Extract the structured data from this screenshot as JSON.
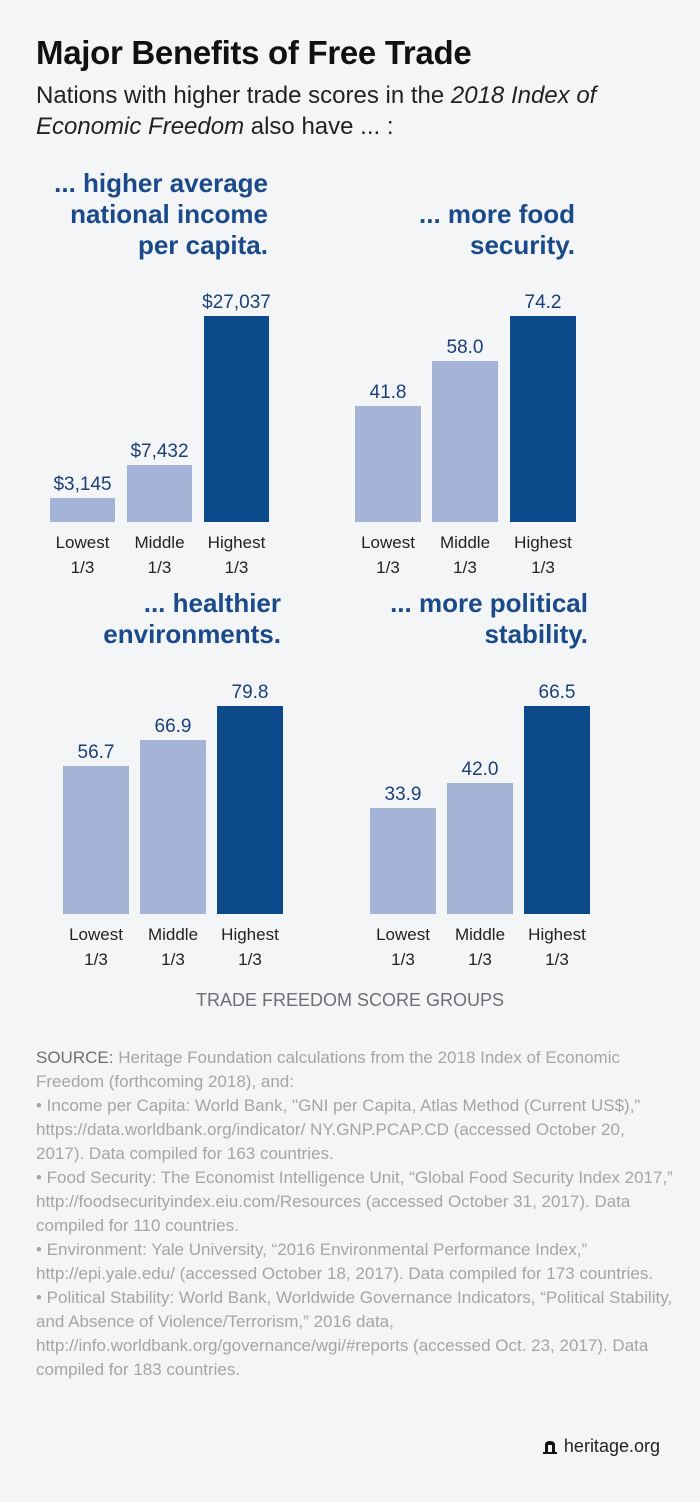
{
  "title": "Major Benefits of Free Trade",
  "subtitle_pre": "Nations with higher trade scores in the ",
  "subtitle_em": "2018 Index of Economic Freedom",
  "subtitle_post": " also have ... :",
  "colors": {
    "light_bar": "#a4b4d6",
    "dark_bar": "#0c4a8c",
    "title_blue": "#1a4a8a"
  },
  "chart_data": [
    {
      "type": "bar",
      "title": "... higher average\nnational income\nper capita.",
      "categories": [
        "Lowest 1/3",
        "Middle 1/3",
        "Highest 1/3"
      ],
      "values": [
        3145,
        7432,
        27037
      ],
      "labels": [
        "$3,145",
        "$7,432",
        "$27,037"
      ]
    },
    {
      "type": "bar",
      "title": "... more food\nsecurity.",
      "categories": [
        "Lowest 1/3",
        "Middle 1/3",
        "Highest 1/3"
      ],
      "values": [
        41.8,
        58.0,
        74.2
      ],
      "labels": [
        "41.8",
        "58.0",
        "74.2"
      ]
    },
    {
      "type": "bar",
      "title": "... healthier\nenvironments.",
      "categories": [
        "Lowest 1/3",
        "Middle 1/3",
        "Highest 1/3"
      ],
      "values": [
        56.7,
        66.9,
        79.8
      ],
      "labels": [
        "56.7",
        "66.9",
        "79.8"
      ]
    },
    {
      "type": "bar",
      "title": "... more political\nstability.",
      "categories": [
        "Lowest 1/3",
        "Middle 1/3",
        "Highest 1/3"
      ],
      "values": [
        33.9,
        42.0,
        66.5
      ],
      "labels": [
        "33.9",
        "42.0",
        "66.5"
      ]
    }
  ],
  "xlabel": "TRADE FREEDOM SCORE GROUPS",
  "source": {
    "label": "SOURCE:",
    "intro": " Heritage Foundation calculations from the 2018 Index of Economic Freedom (forthcoming 2018), and:",
    "items": [
      "• Income per Capita: World Bank, \"GNI per Capita, Atlas Method (Current US$),\" https://data.worldbank.org/indicator/ NY.GNP.PCAP.CD (accessed October 20, 2017). Data compiled for 163 countries.",
      "• Food Security: The Economist Intelligence Unit, “Global Food Security Index 2017,” http://foodsecurityindex.eiu.com/Resources (accessed October 31, 2017). Data compiled for 110 countries.",
      "• Environment: Yale University, “2016 Environmental Performance Index,” http://epi.yale.edu/ (accessed October 18, 2017). Data compiled for 173 countries.",
      "• Political Stability: World Bank, Worldwide Governance Indicators, “Political Stability, and Absence of Violence/Terrorism,” 2016 data, http://info.worldbank.org/governance/wgi/#reports (accessed Oct. 23, 2017). Data compiled for 183 countries."
    ]
  },
  "logo": {
    "text": "heritage.org",
    "icon": "liberty-bell-icon"
  }
}
